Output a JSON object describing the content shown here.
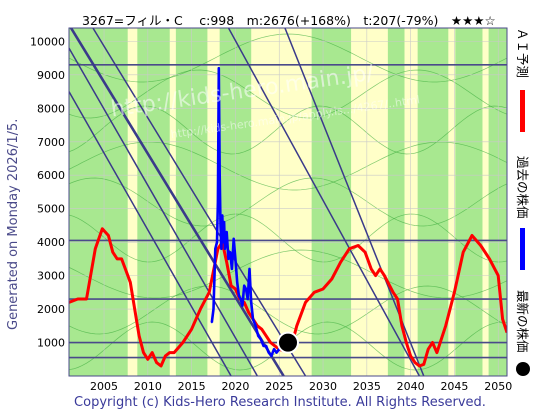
{
  "title_text": "3267=フィル・C　 c:998　m:2676(+168%)　t:207(-79%)　★★★☆",
  "side_label": "Generated on Monday 2026/1/5.",
  "footer": "Copyright (c) Kids-Hero Research Institute. All Rights Reserved.",
  "watermark": "http://kids-hero.main.jp/",
  "watermark2": "http://kids-hero.main.jp/apply.is.../4267/..html",
  "legend": [
    {
      "label": "ＡＩ予測",
      "color": "#ff0000",
      "marker": "bar"
    },
    {
      "label": "過去の株価",
      "color": "#0000ff",
      "marker": "bar"
    },
    {
      "label": "最新の株価",
      "color": "#000000",
      "marker": "dot"
    }
  ],
  "chart_data": {
    "type": "line",
    "xlim": [
      2001,
      2051
    ],
    "ylim": [
      0,
      10400
    ],
    "xticks": [
      2005,
      2010,
      2015,
      2020,
      2025,
      2030,
      2035,
      2040,
      2045,
      2050
    ],
    "yticks": [
      1000,
      2000,
      3000,
      4000,
      5000,
      6000,
      7000,
      8000,
      9000,
      10000
    ],
    "horizontal_lines": [
      9300,
      4050,
      2300,
      1000,
      550
    ],
    "diagonal_lines": [
      {
        "x1": 2001,
        "y1": 10500,
        "x2": 2025.5,
        "y2": 0
      },
      {
        "x1": 2003.5,
        "y1": 10500,
        "x2": 2028,
        "y2": 0
      },
      {
        "x1": 2001,
        "y1": 9800,
        "x2": 2022.5,
        "y2": 0
      },
      {
        "x1": 2001,
        "y1": 8500,
        "x2": 2019.5,
        "y2": 0
      },
      {
        "x1": 2019,
        "y1": 10500,
        "x2": 2041,
        "y2": 0
      },
      {
        "x1": 2025.5,
        "y1": 10500,
        "x2": 2041.5,
        "y2": 0
      }
    ],
    "green_bands": [
      [
        2001,
        2007.7
      ],
      [
        2008.8,
        2012.5
      ],
      [
        2013.2,
        2016.8
      ],
      [
        2018.2,
        2021.8
      ],
      [
        2028.7,
        2033.2
      ],
      [
        2037.4,
        2039.3
      ],
      [
        2040.8,
        2044.3
      ],
      [
        2045.1,
        2048.2
      ],
      [
        2048.9,
        2051
      ]
    ],
    "series": [
      {
        "name": "ＡＩ予測",
        "color": "#ff0000",
        "x": [
          2001,
          2002,
          2003,
          2004,
          2004.8,
          2005.5,
          2006,
          2006.5,
          2007,
          2008,
          2008.5,
          2009,
          2009.5,
          2010,
          2010.5,
          2011,
          2011.5,
          2012,
          2012.5,
          2013,
          2014,
          2015,
          2016,
          2017,
          2018,
          2018.5,
          2019,
          2019.5,
          2020,
          2020.5,
          2021,
          2021.5,
          2022,
          2022.5,
          2023,
          2023.5,
          2024,
          2024.5,
          2025,
          2025.5,
          2026,
          2026.5,
          2027,
          2028,
          2029,
          2030,
          2031,
          2032,
          2033,
          2034,
          2034.8,
          2035.5,
          2036,
          2036.5,
          2037,
          2038,
          2038.5,
          2039,
          2039.5,
          2040,
          2040.5,
          2041,
          2041.5,
          2042,
          2042.5,
          2043,
          2044,
          2045,
          2046,
          2047,
          2048,
          2049,
          2050,
          2050.5,
          2051
        ],
        "values": [
          2200,
          2300,
          2300,
          3800,
          4400,
          4200,
          3700,
          3500,
          3500,
          2800,
          2000,
          1200,
          700,
          500,
          700,
          400,
          300,
          600,
          700,
          700,
          1000,
          1400,
          2000,
          2500,
          3800,
          4000,
          3400,
          2700,
          2600,
          2300,
          2200,
          1900,
          1700,
          1500,
          1400,
          1200,
          1000,
          900,
          800,
          750,
          900,
          1000,
          1500,
          2200,
          2500,
          2600,
          2900,
          3400,
          3800,
          3900,
          3700,
          3200,
          3000,
          3200,
          3000,
          2500,
          2300,
          1500,
          1000,
          600,
          400,
          300,
          350,
          800,
          1000,
          700,
          1500,
          2500,
          3700,
          4200,
          3900,
          3500,
          3000,
          1700,
          1300
        ]
      },
      {
        "name": "過去の株価",
        "color": "#0000ff",
        "x": [
          2017.3,
          2017.5,
          2017.7,
          2017.9,
          2018.0,
          2018.1,
          2018.2,
          2018.3,
          2018.4,
          2018.5,
          2018.6,
          2018.7,
          2018.8,
          2019.0,
          2019.2,
          2019.4,
          2019.6,
          2019.8,
          2020.0,
          2020.2,
          2020.4,
          2020.6,
          2020.8,
          2021.0,
          2021.2,
          2021.4,
          2021.6,
          2021.8,
          2022.0,
          2022.3,
          2022.6,
          2022.9,
          2023.2,
          2023.5,
          2023.8,
          2024.1,
          2024.4,
          2024.7,
          2025.0,
          2025.3,
          2025.6,
          2026.0
        ],
        "values": [
          1600,
          2000,
          3800,
          4000,
          5200,
          9200,
          6000,
          4500,
          3800,
          4800,
          4000,
          4600,
          3800,
          4300,
          3500,
          3700,
          3200,
          4100,
          3500,
          2800,
          2400,
          2300,
          2100,
          2700,
          2600,
          2300,
          3200,
          2200,
          1700,
          1500,
          1200,
          1100,
          900,
          900,
          700,
          600,
          800,
          700,
          800,
          900,
          950,
          998
        ]
      },
      {
        "name": "latest",
        "color": "#000000",
        "x": [
          2026.0
        ],
        "values": [
          998
        ]
      }
    ],
    "latest_point": {
      "x": 2026.0,
      "y": 998
    }
  }
}
